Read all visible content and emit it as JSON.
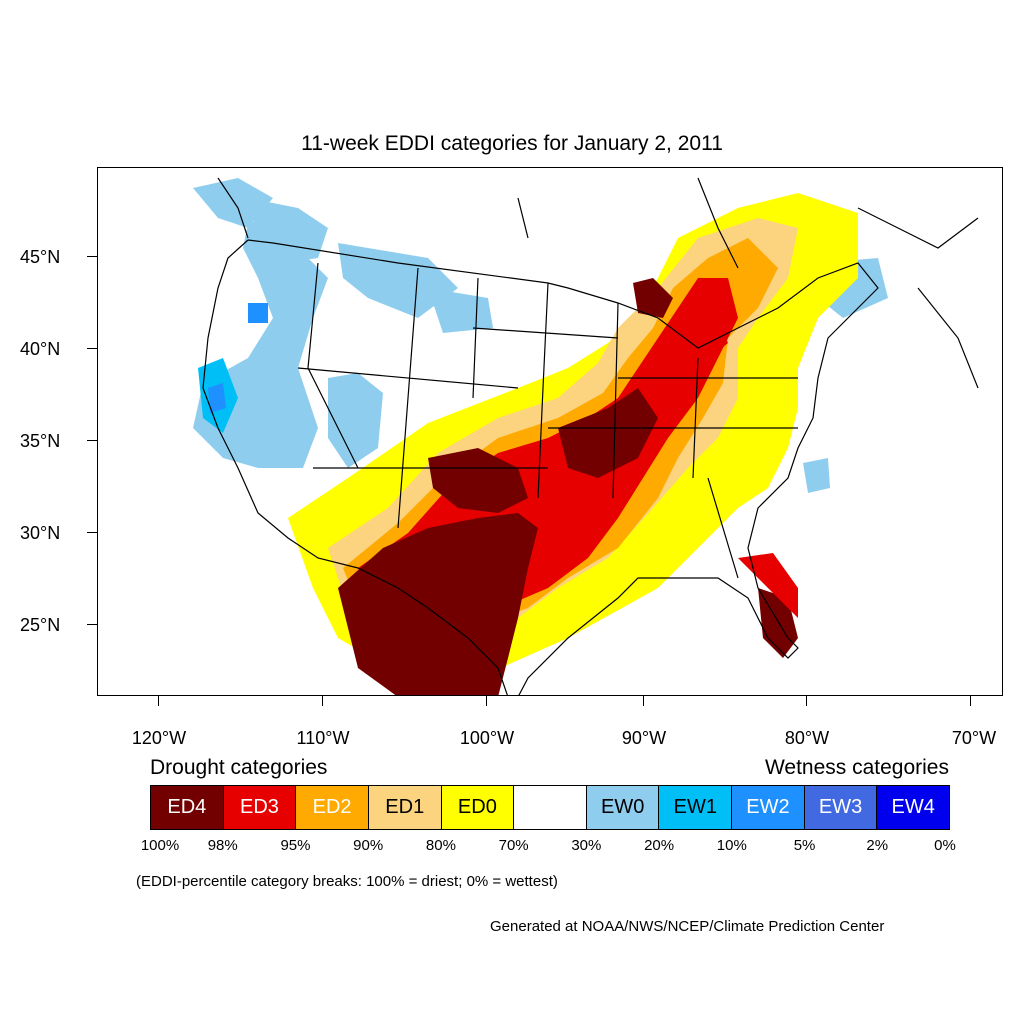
{
  "title": "11-week EDDI categories for January 2, 2011",
  "lat_labels": [
    "45°N",
    "40°N",
    "35°N",
    "30°N",
    "25°N"
  ],
  "lon_labels": [
    "120°W",
    "110°W",
    "100°W",
    "90°W",
    "80°W",
    "70°W"
  ],
  "legend": {
    "drought_heading": "Drought categories",
    "wetness_heading": "Wetness categories",
    "categories": [
      {
        "label": "ED4",
        "color": "#730000",
        "text_color": "#ffffff"
      },
      {
        "label": "ED3",
        "color": "#e60000",
        "text_color": "#ffffff"
      },
      {
        "label": "ED2",
        "color": "#ffaa00",
        "text_color": "#ffffff"
      },
      {
        "label": "ED1",
        "color": "#fcd37f",
        "text_color": "#000000"
      },
      {
        "label": "ED0",
        "color": "#ffff00",
        "text_color": "#000000"
      },
      {
        "label": "",
        "color": "#ffffff",
        "text_color": "#000000"
      },
      {
        "label": "EW0",
        "color": "#8fcdef",
        "text_color": "#000000"
      },
      {
        "label": "EW1",
        "color": "#00bff7",
        "text_color": "#000000"
      },
      {
        "label": "EW2",
        "color": "#1e90ff",
        "text_color": "#ffffff"
      },
      {
        "label": "EW3",
        "color": "#4169e1",
        "text_color": "#ffffff"
      },
      {
        "label": "EW4",
        "color": "#0000ee",
        "text_color": "#ffffff"
      }
    ],
    "breaks": [
      "100%",
      "98%",
      "95%",
      "90%",
      "80%",
      "70%",
      "30%",
      "20%",
      "10%",
      "5%",
      "2%",
      "0%"
    ]
  },
  "note": "(EDDI-percentile category breaks: 100% = driest; 0% = wettest)",
  "credit": "Generated at NOAA/NWS/NCEP/Climate Prediction Center"
}
